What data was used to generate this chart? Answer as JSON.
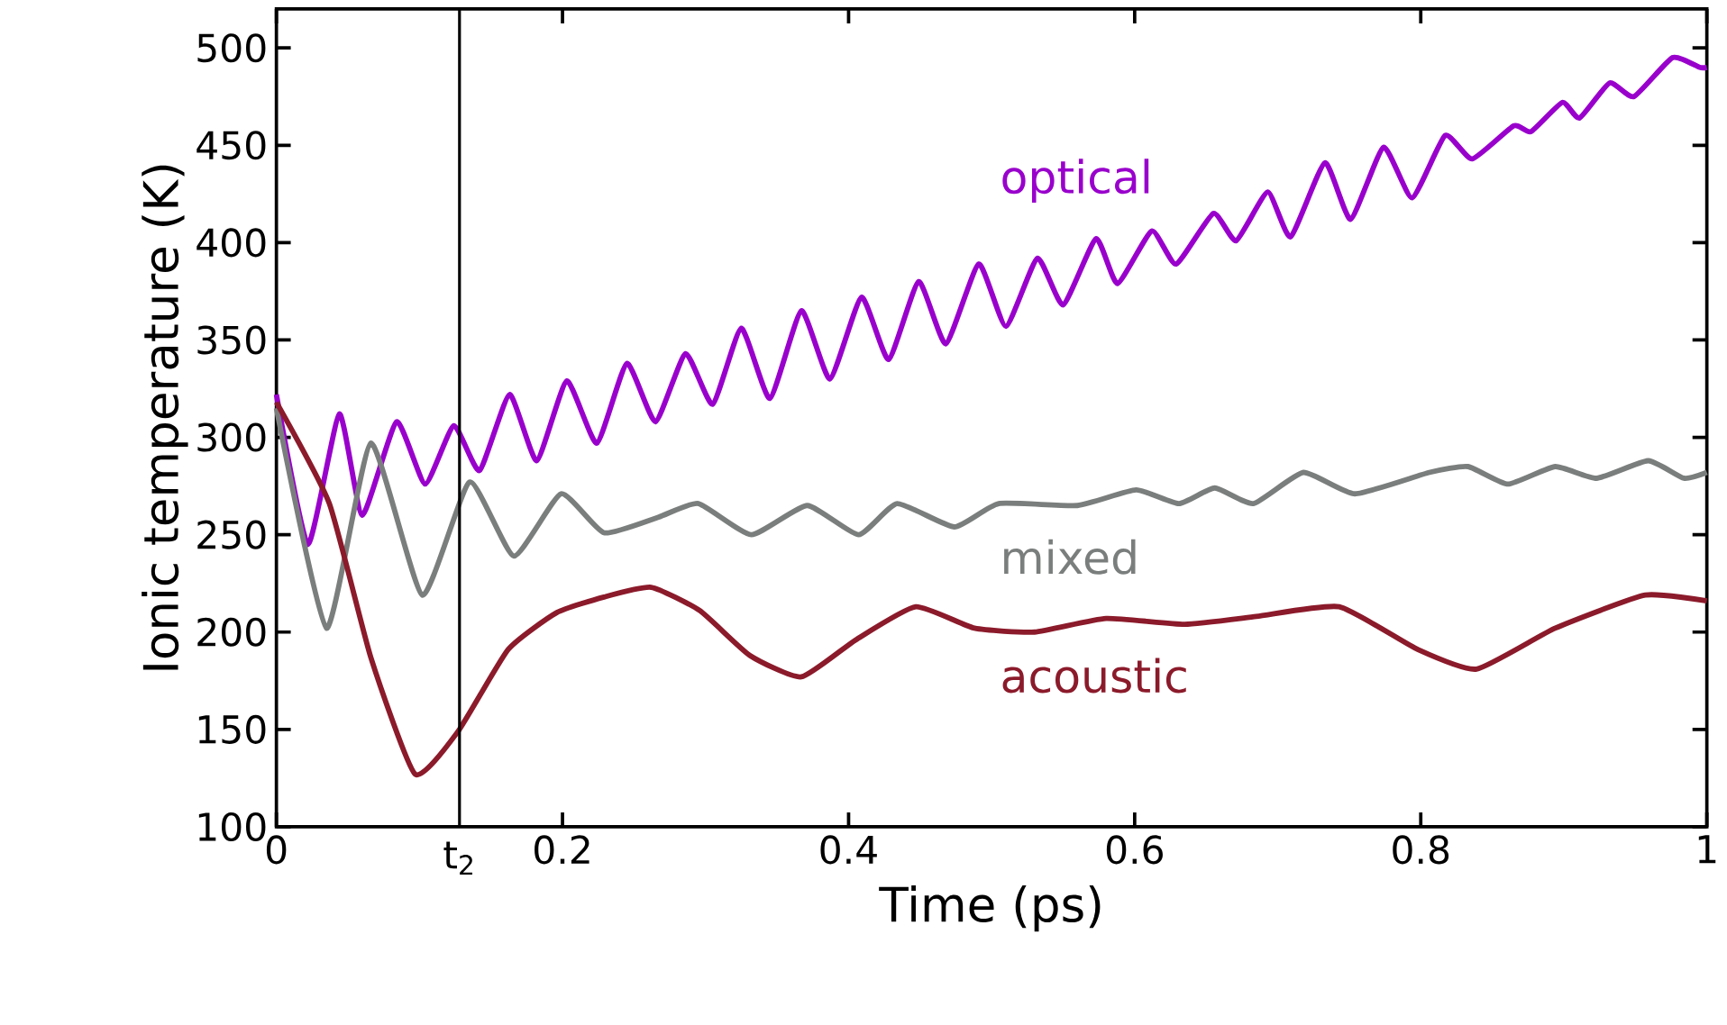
{
  "chart_data": {
    "type": "line",
    "xlabel": "Time (ps)",
    "ylabel": "Ionic temperature (K)",
    "xlim": [
      0,
      1
    ],
    "ylim": [
      100,
      520
    ],
    "xticks": [
      0,
      0.2,
      0.4,
      0.6,
      0.8,
      1
    ],
    "yticks": [
      100,
      150,
      200,
      250,
      300,
      350,
      400,
      450,
      500
    ],
    "legend": false,
    "grid": false,
    "marker": "none",
    "line_style": "solid",
    "ref_lines": [
      {
        "axis": "x",
        "value": 0.128,
        "label": "t$_{2}$",
        "color": "#000000"
      }
    ],
    "series": [
      {
        "name": "optical",
        "color": "#9900cc",
        "x": [
          0,
          0.022,
          0.044,
          0.06,
          0.084,
          0.104,
          0.124,
          0.142,
          0.163,
          0.182,
          0.203,
          0.224,
          0.245,
          0.265,
          0.286,
          0.305,
          0.325,
          0.345,
          0.367,
          0.387,
          0.409,
          0.428,
          0.449,
          0.468,
          0.491,
          0.51,
          0.532,
          0.55,
          0.573,
          0.588,
          0.612,
          0.629,
          0.655,
          0.671,
          0.693,
          0.709,
          0.733,
          0.751,
          0.774,
          0.794,
          0.817,
          0.836,
          0.865,
          0.877,
          0.899,
          0.911,
          0.932,
          0.949,
          0.976,
          0.995,
          1
        ],
        "values": [
          322,
          245,
          312,
          260,
          308,
          276,
          306,
          283,
          322,
          288,
          329,
          297,
          338,
          308,
          343,
          317,
          356,
          320,
          365,
          330,
          372,
          340,
          380,
          348,
          389,
          357,
          392,
          368,
          402,
          379,
          406,
          389,
          415,
          401,
          426,
          403,
          441,
          412,
          449,
          423,
          455,
          443,
          460,
          457,
          472,
          464,
          482,
          475,
          495,
          490,
          490
        ]
      },
      {
        "name": "mixed",
        "color": "#7a7e7c",
        "x": [
          0,
          0.035,
          0.066,
          0.102,
          0.135,
          0.166,
          0.199,
          0.229,
          0.267,
          0.295,
          0.332,
          0.371,
          0.407,
          0.434,
          0.474,
          0.505,
          0.56,
          0.601,
          0.631,
          0.656,
          0.683,
          0.718,
          0.754,
          0.806,
          0.833,
          0.861,
          0.894,
          0.923,
          0.959,
          0.984,
          1
        ],
        "values": [
          315,
          202,
          297,
          219,
          277,
          239,
          271,
          251,
          259,
          266,
          250,
          265,
          250,
          266,
          254,
          266,
          265,
          273,
          266,
          274,
          266,
          282,
          271,
          282,
          285,
          276,
          285,
          279,
          288,
          279,
          282
        ]
      },
      {
        "name": "acoustic",
        "color": "#8b1a2a",
        "x": [
          0,
          0.037,
          0.066,
          0.097,
          0.127,
          0.162,
          0.196,
          0.229,
          0.262,
          0.296,
          0.331,
          0.367,
          0.405,
          0.447,
          0.488,
          0.53,
          0.58,
          0.635,
          0.685,
          0.743,
          0.798,
          0.839,
          0.894,
          0.957,
          1
        ],
        "values": [
          318,
          266,
          187,
          127,
          149,
          191,
          210,
          218,
          223,
          211,
          188,
          177,
          196,
          213,
          202,
          200,
          207,
          204,
          208,
          213,
          191,
          181,
          202,
          219,
          216
        ]
      }
    ]
  }
}
